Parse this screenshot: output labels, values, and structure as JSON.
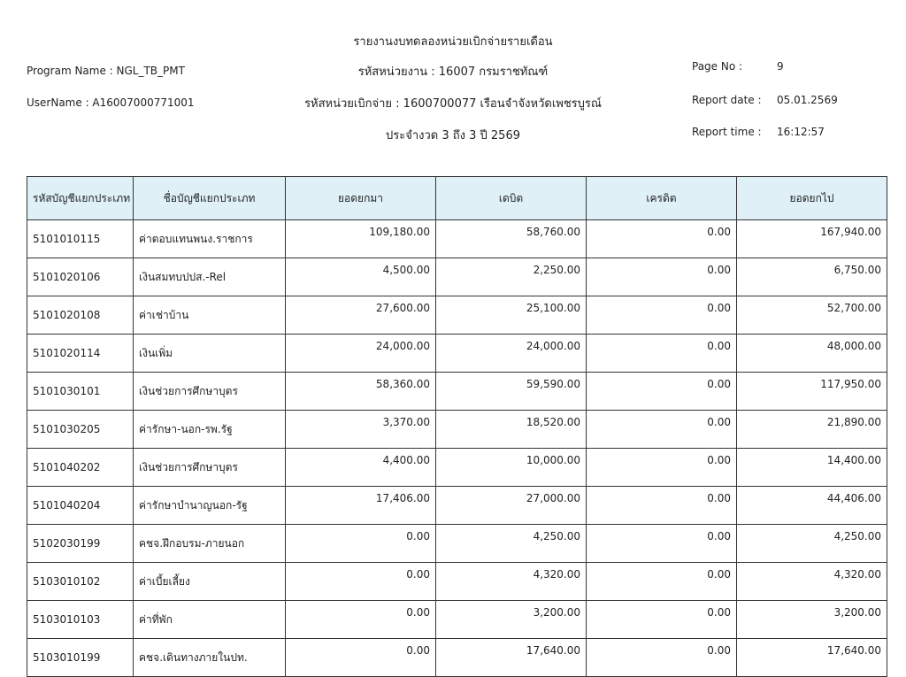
{
  "header": {
    "title": "รายงานงบทดลองหน่วยเบิกจ่ายรายเดือน",
    "agency": "รหัสหน่วยงาน : 16007 กรมราชทัณฑ์",
    "disbursing_unit": "รหัสหน่วยเบิกจ่าย : 1600700077 เรือนจำจังหวัดเพชรบูรณ์",
    "period": "ประจำงวด 3 ถึง 3 ปี 2569",
    "program_name": "Program Name : NGL_TB_PMT",
    "username": "UserName : A16007000771001",
    "page_no_label": "Page No :",
    "page_no": "9",
    "report_date_label": "Report date :",
    "report_date": "05.01.2569",
    "report_time_label": "Report time :",
    "report_time": "16:12:57"
  },
  "table": {
    "columns": [
      "รหัสบัญชีแยกประเภท",
      "ชื่อบัญชีแยกประเภท",
      "ยอดยกมา",
      "เดบิต",
      "เครดิต",
      "ยอดยกไป"
    ],
    "rows": [
      [
        "5101010115",
        "ค่าตอบแทนพนง.ราชการ",
        "109,180.00",
        "58,760.00",
        "0.00",
        "167,940.00"
      ],
      [
        "5101020106",
        "เงินสมทบปปส.-Rel",
        "4,500.00",
        "2,250.00",
        "0.00",
        "6,750.00"
      ],
      [
        "5101020108",
        "ค่าเช่าบ้าน",
        "27,600.00",
        "25,100.00",
        "0.00",
        "52,700.00"
      ],
      [
        "5101020114",
        "เงินเพิ่ม",
        "24,000.00",
        "24,000.00",
        "0.00",
        "48,000.00"
      ],
      [
        "5101030101",
        "เงินช่วยการศึกษาบุตร",
        "58,360.00",
        "59,590.00",
        "0.00",
        "117,950.00"
      ],
      [
        "5101030205",
        "ค่ารักษา-นอก-รพ.รัฐ",
        "3,370.00",
        "18,520.00",
        "0.00",
        "21,890.00"
      ],
      [
        "5101040202",
        "เงินช่วยการศึกษาบุตร",
        "4,400.00",
        "10,000.00",
        "0.00",
        "14,400.00"
      ],
      [
        "5101040204",
        "ค่ารักษาบำนาญนอก-รัฐ",
        "17,406.00",
        "27,000.00",
        "0.00",
        "44,406.00"
      ],
      [
        "5102030199",
        "คชจ.ฝึกอบรม-ภายนอก",
        "0.00",
        "4,250.00",
        "0.00",
        "4,250.00"
      ],
      [
        "5103010102",
        "ค่าเบี้ยเลี้ยง",
        "0.00",
        "4,320.00",
        "0.00",
        "4,320.00"
      ],
      [
        "5103010103",
        "ค่าที่พัก",
        "0.00",
        "3,200.00",
        "0.00",
        "3,200.00"
      ],
      [
        "5103010199",
        "คชจ.เดินทางภายในปท.",
        "0.00",
        "17,640.00",
        "0.00",
        "17,640.00"
      ]
    ]
  },
  "colors": {
    "header_bg": "#dff1f7"
  }
}
